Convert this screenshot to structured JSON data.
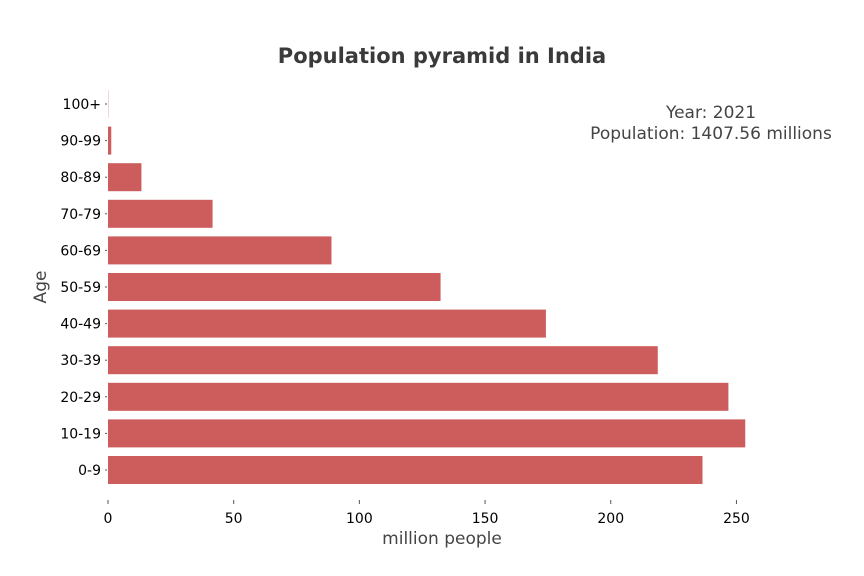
{
  "chart_data": {
    "type": "bar",
    "orientation": "horizontal",
    "title": "Population pyramid in India",
    "xlabel": "million people",
    "ylabel": "Age",
    "categories": [
      "0-9",
      "10-19",
      "20-29",
      "30-39",
      "40-49",
      "50-59",
      "60-69",
      "70-79",
      "80-89",
      "90-99",
      "100+"
    ],
    "series": [
      {
        "values": [
          236.5,
          253.5,
          246.8,
          218.7,
          174.2,
          132.3,
          88.9,
          41.6,
          13.3,
          1.3,
          0.1
        ]
      }
    ],
    "xlim": [
      0,
      290
    ],
    "xticks": [
      0,
      50,
      100,
      150,
      200,
      250
    ],
    "grid": false,
    "annotation": {
      "year_text": "Year: 2021",
      "population_text": "Population: 1407.56 millions"
    },
    "colors": {
      "bar": "#cd5c5c",
      "text": "#444444"
    }
  }
}
